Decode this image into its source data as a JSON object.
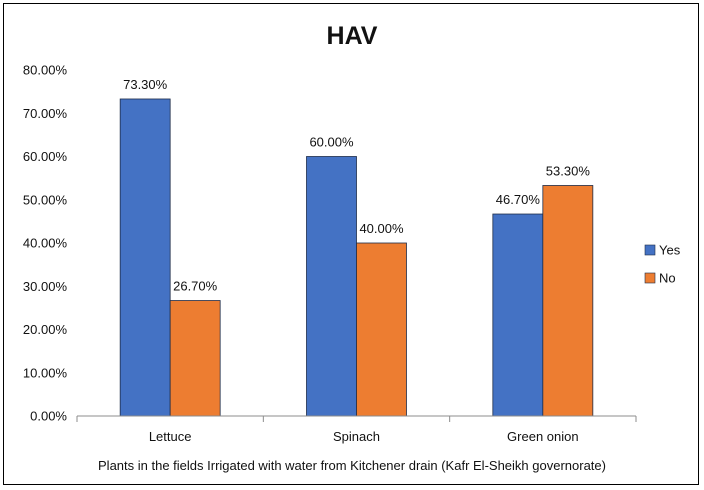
{
  "chart_data": {
    "type": "bar",
    "title": "HAV",
    "xlabel": "Plants in the fields Irrigated with water from Kitchener drain (Kafr El-Sheikh governorate)",
    "ylabel": "",
    "categories": [
      "Lettuce",
      "Spinach",
      "Green onion"
    ],
    "series": [
      {
        "name": "Yes",
        "color": "#4472C4",
        "values": [
          73.3,
          60.0,
          46.7
        ],
        "labels": [
          "73.30%",
          "60.00%",
          "46.70%"
        ]
      },
      {
        "name": "No",
        "color": "#ED7D31",
        "values": [
          26.7,
          40.0,
          53.3
        ],
        "labels": [
          "26.70%",
          "40.00%",
          "53.30%"
        ]
      }
    ],
    "ylim": [
      0,
      80
    ],
    "yticks": [
      0,
      10,
      20,
      30,
      40,
      50,
      60,
      70,
      80
    ],
    "ytick_labels": [
      "0.00%",
      "10.00%",
      "20.00%",
      "30.00%",
      "40.00%",
      "50.00%",
      "60.00%",
      "70.00%",
      "80.00%"
    ],
    "grid": false,
    "legend_position": "right"
  }
}
